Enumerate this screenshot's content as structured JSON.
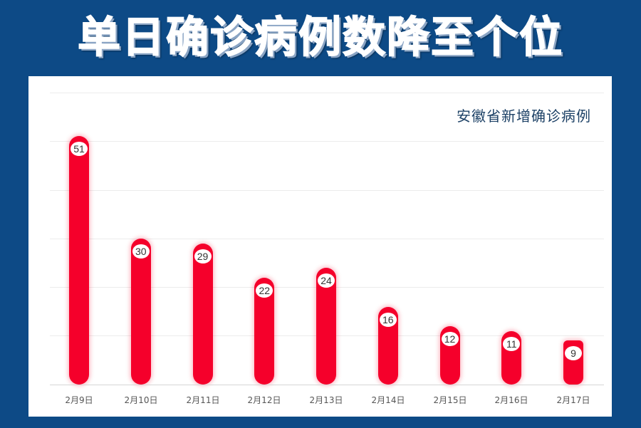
{
  "headline": "单日确诊病例数降至个位",
  "colors": {
    "background": "#0d4a86",
    "panel": "#ffffff",
    "bar": "#f5002b",
    "title_text": "#1d4166"
  },
  "chart_data": {
    "type": "bar",
    "title": "安徽省新增确诊病例",
    "xlabel": "",
    "ylabel": "",
    "categories": [
      "2月9日",
      "2月10日",
      "2月11日",
      "2月12日",
      "2月13日",
      "2月14日",
      "2月15日",
      "2月16日",
      "2月17日"
    ],
    "values": [
      51,
      30,
      29,
      22,
      24,
      16,
      12,
      11,
      9
    ],
    "ylim": [
      0,
      60
    ],
    "grid": true,
    "gridline_step": 10,
    "data_labels": true,
    "legend": null
  }
}
